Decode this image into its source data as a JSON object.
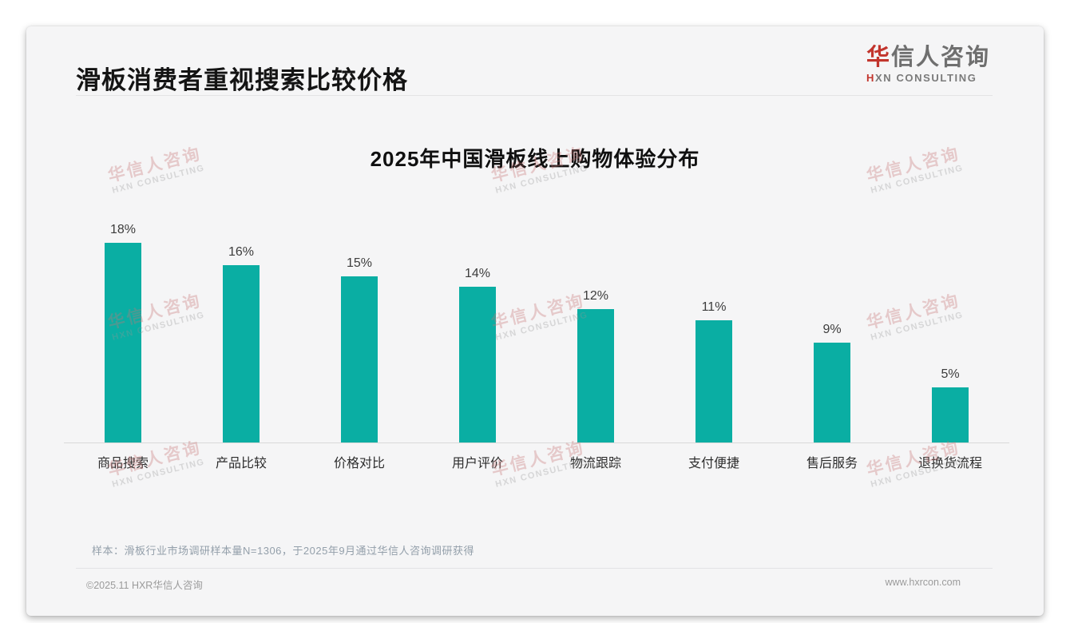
{
  "page": {
    "title": "滑板消费者重视搜索比较价格"
  },
  "logo": {
    "brand_first": "华",
    "brand_rest": "信人咨询",
    "tagline_first": "H",
    "tagline_rest": "XN CONSULTING"
  },
  "chart_data": {
    "type": "bar",
    "title": "2025年中国滑板线上购物体验分布",
    "categories": [
      "商品搜索",
      "产品比较",
      "价格对比",
      "用户评价",
      "物流跟踪",
      "支付便捷",
      "售后服务",
      "退换货流程"
    ],
    "values": [
      18,
      16,
      15,
      14,
      12,
      11,
      9,
      5
    ],
    "data_labels": [
      "18%",
      "16%",
      "15%",
      "14%",
      "12%",
      "11%",
      "9%",
      "5%"
    ],
    "unit": "%",
    "ylim": [
      0,
      20
    ],
    "grid": false,
    "legend": "none",
    "bar_color": "#0aaea3"
  },
  "watermark": {
    "line1": "华信人咨询",
    "line2": "HXN CONSULTING"
  },
  "footnote": "样本：滑板行业市场调研样本量N=1306，于2025年9月通过华信人咨询调研获得",
  "footer": {
    "left": "©2025.11 HXR华信人咨询",
    "right": "www.hxrcon.com"
  },
  "colors": {
    "accent_red": "#c2352d",
    "bar_teal": "#0aaea3",
    "card_bg": "#f5f5f6"
  }
}
